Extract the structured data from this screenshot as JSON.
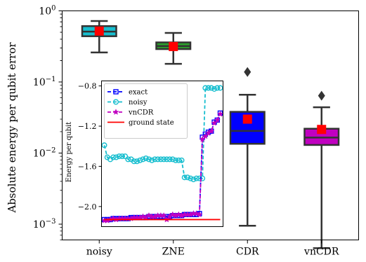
{
  "chart_data": [
    {
      "type": "box",
      "ylabel": "Absolute energy per qubit error",
      "yscale": "log",
      "ylim": [
        0.0006,
        1.0
      ],
      "categories": [
        "noisy",
        "ZNE",
        "CDR",
        "vnCDR"
      ],
      "y_ticks": [
        {
          "value": 1.0,
          "base": "10",
          "exp": "0"
        },
        {
          "value": 0.1,
          "base": "10",
          "exp": "−1"
        },
        {
          "value": 0.01,
          "base": "10",
          "exp": "−2"
        },
        {
          "value": 0.001,
          "base": "10",
          "exp": "−3"
        }
      ],
      "boxes": [
        {
          "label": "noisy",
          "color": "#17becf",
          "whisker_low": 0.26,
          "q1": 0.44,
          "median": 0.51,
          "q3": 0.61,
          "whisker_high": 0.72,
          "mean": 0.52,
          "outliers": []
        },
        {
          "label": "ZNE",
          "color": "#2ca02c",
          "whisker_low": 0.18,
          "q1": 0.29,
          "median": 0.32,
          "q3": 0.36,
          "whisker_high": 0.49,
          "mean": 0.315,
          "outliers": []
        },
        {
          "label": "CDR",
          "color": "#0000ff",
          "whisker_low": 0.00095,
          "q1": 0.0135,
          "median": 0.0205,
          "q3": 0.038,
          "whisker_high": 0.066,
          "mean": 0.03,
          "outliers": [
            0.138
          ]
        },
        {
          "label": "vnCDR",
          "color": "#c000c0",
          "whisker_low": 0.00046,
          "q1": 0.013,
          "median": 0.0165,
          "q3": 0.022,
          "whisker_high": 0.044,
          "mean": 0.0215,
          "outliers": [
            0.064
          ]
        }
      ],
      "mean_marker_color": "#ff0000"
    },
    {
      "type": "line",
      "ylabel": "Energy per qubit",
      "ylim": [
        -2.2,
        -0.75
      ],
      "y_ticks": [
        "−0.8",
        "−1.2",
        "−1.6",
        "−2.0"
      ],
      "y_tick_values": [
        -0.8,
        -1.2,
        -1.6,
        -2.0
      ],
      "x_count": 40,
      "legend_position": "top-left",
      "series": [
        {
          "name": "exact",
          "color": "#0000ff",
          "marker": "square",
          "values": [
            -2.13,
            -2.13,
            -2.13,
            -2.12,
            -2.12,
            -2.12,
            -2.12,
            -2.12,
            -2.12,
            -2.11,
            -2.11,
            -2.11,
            -2.11,
            -2.11,
            -2.11,
            -2.1,
            -2.1,
            -2.1,
            -2.1,
            -2.1,
            -2.1,
            -2.1,
            -2.1,
            -2.09,
            -2.09,
            -2.09,
            -2.09,
            -2.08,
            -2.08,
            -2.08,
            -2.08,
            -2.08,
            -2.07,
            -1.31,
            -1.28,
            -1.26,
            -1.25,
            -1.16,
            -1.14,
            -1.07
          ]
        },
        {
          "name": "noisy",
          "color": "#17becf",
          "marker": "circle",
          "values": [
            -1.39,
            -1.51,
            -1.53,
            -1.51,
            -1.51,
            -1.5,
            -1.5,
            -1.5,
            -1.53,
            -1.53,
            -1.55,
            -1.55,
            -1.54,
            -1.53,
            -1.52,
            -1.53,
            -1.54,
            -1.53,
            -1.53,
            -1.53,
            -1.53,
            -1.53,
            -1.53,
            -1.53,
            -1.54,
            -1.54,
            -1.54,
            -1.71,
            -1.71,
            -1.72,
            -1.73,
            -1.72,
            -1.72,
            -1.72,
            -0.82,
            -0.82,
            -0.82,
            -0.83,
            -0.82,
            -0.82
          ]
        },
        {
          "name": "vnCDR",
          "color": "#c000c0",
          "marker": "star",
          "values": [
            -2.14,
            -2.14,
            -2.13,
            -2.12,
            -2.13,
            -2.12,
            -2.12,
            -2.12,
            -2.12,
            -2.12,
            -2.11,
            -2.11,
            -2.11,
            -2.1,
            -2.11,
            -2.09,
            -2.1,
            -2.1,
            -2.09,
            -2.09,
            -2.09,
            -2.13,
            -2.1,
            -2.08,
            -2.09,
            -2.08,
            -2.09,
            -2.08,
            -2.08,
            -2.08,
            -2.07,
            -2.07,
            -2.08,
            -1.33,
            -1.3,
            -1.27,
            -1.25,
            -1.17,
            -1.14,
            -1.08
          ]
        },
        {
          "name": "ground state",
          "color": "#ff0000",
          "marker": "none",
          "value": -2.13
        }
      ]
    }
  ]
}
